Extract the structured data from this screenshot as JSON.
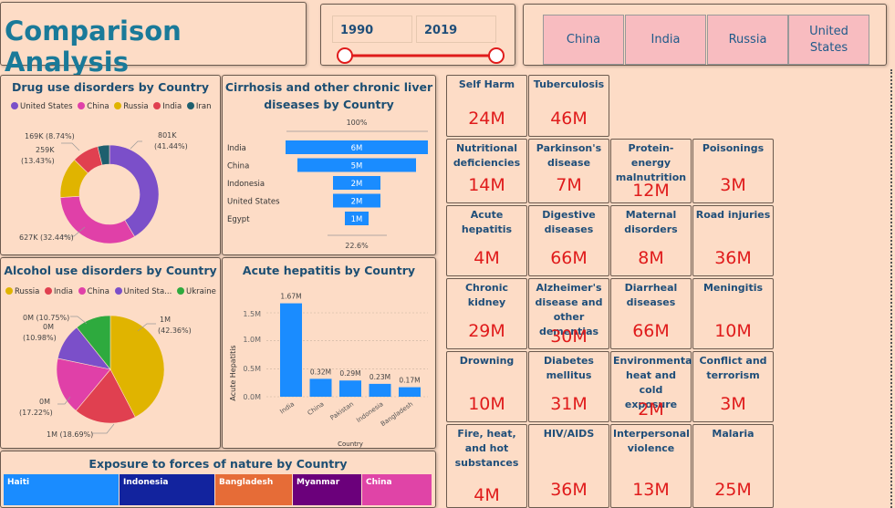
{
  "header": {
    "title": "Comparison Analysis"
  },
  "year_slicer": {
    "start": "1990",
    "end": "2019"
  },
  "country_slicer": {
    "items": [
      "China",
      "India",
      "Russia",
      "United States"
    ]
  },
  "drug": {
    "title": "Drug use disorders by Country",
    "legend": [
      "United States",
      "China",
      "Russia",
      "India",
      "Iran"
    ],
    "labels": {
      "a": "169K (8.74%)",
      "b": "259K",
      "c": "(13.43%)",
      "d": "801K",
      "e": "(41.44%)",
      "f": "627K (32.44%)"
    }
  },
  "cirrhosis": {
    "title_line1": "Cirrhosis and other chronic liver",
    "title_line2": "diseases by Country",
    "top_label": "100%",
    "bottom_label": "22.6%",
    "rows": [
      {
        "country": "India",
        "value": "6M"
      },
      {
        "country": "China",
        "value": "5M"
      },
      {
        "country": "Indonesia",
        "value": "2M"
      },
      {
        "country": "United States",
        "value": "2M"
      },
      {
        "country": "Egypt",
        "value": "1M"
      }
    ]
  },
  "alcohol": {
    "title": "Alcohol use disorders by Country",
    "legend": [
      "Russia",
      "India",
      "China",
      "United Sta...",
      "Ukraine"
    ],
    "labels": {
      "a": "0M (10.75%)",
      "b": "0M",
      "c": "(10.98%)",
      "d": "1M",
      "e": "(42.36%)",
      "f": "0M",
      "g": "(17.22%)",
      "h": "1M (18.69%)"
    }
  },
  "hepatitis_chart": {
    "title": "Acute hepatitis by Country",
    "ylabel": "Acute Hepatitis",
    "xlabel": "Country",
    "yticks": [
      "1.5M",
      "1.0M",
      "0.5M",
      "0.0M"
    ],
    "bar_labels": [
      "1.67M",
      "0.32M",
      "0.29M",
      "0.23M",
      "0.17M"
    ]
  },
  "forces": {
    "title": "Exposure to forces of nature by Country",
    "items": [
      "Haiti",
      "Indonesia",
      "Bangladesh",
      "Myanmar",
      "China"
    ]
  },
  "cards": [
    {
      "title": "Self Harm",
      "value": "24M"
    },
    {
      "title": "Tuberculosis",
      "value": "46M"
    },
    {
      "title": "Nutritional deficiencies",
      "value": "14M"
    },
    {
      "title": "Parkinson's disease",
      "value": "7M"
    },
    {
      "title": "Protein-energy malnutrition",
      "value": "12M"
    },
    {
      "title": "Poisonings",
      "value": "3M"
    },
    {
      "title": "Acute hepatitis",
      "value": "4M"
    },
    {
      "title": "Digestive diseases",
      "value": "66M"
    },
    {
      "title": "Maternal disorders",
      "value": "8M"
    },
    {
      "title": "Road injuries",
      "value": "36M"
    },
    {
      "title": "Chronic kidney",
      "value": "29M"
    },
    {
      "title": "Alzheimer's disease and other dementias",
      "value": "30M"
    },
    {
      "title": "Diarrheal diseases",
      "value": "66M"
    },
    {
      "title": "Meningitis",
      "value": "10M"
    },
    {
      "title": "Drowning",
      "value": "10M"
    },
    {
      "title": "Diabetes mellitus",
      "value": "31M"
    },
    {
      "title": "Environmental heat and cold exposure",
      "value": "2M"
    },
    {
      "title": "Conflict and terrorism",
      "value": "3M"
    },
    {
      "title": "Fire, heat, and hot substances",
      "value": "4M"
    },
    {
      "title": "HIV/AIDS",
      "value": "36M"
    },
    {
      "title": "Interpersonal violence",
      "value": "13M"
    },
    {
      "title": "Malaria",
      "value": "25M"
    }
  ],
  "chart_data": [
    {
      "type": "pie",
      "title": "Drug use disorders by Country",
      "categories": [
        "United States",
        "China",
        "Russia",
        "India",
        "Iran"
      ],
      "values": [
        801,
        627,
        259,
        169,
        75
      ],
      "colors": [
        "#7b4fc9",
        "#e040a8",
        "#e0b400",
        "#e04050",
        "#1e5f6e"
      ]
    },
    {
      "type": "bar",
      "title": "Cirrhosis and other chronic liver diseases by Country",
      "categories": [
        "India",
        "China",
        "Indonesia",
        "United States",
        "Egypt"
      ],
      "values": [
        6,
        5,
        2,
        2,
        1
      ]
    },
    {
      "type": "pie",
      "title": "Alcohol use disorders by Country",
      "categories": [
        "Russia",
        "India",
        "China",
        "United Sta...",
        "Ukraine"
      ],
      "values": [
        42.36,
        18.69,
        17.22,
        10.98,
        10.75
      ],
      "colors": [
        "#e0b400",
        "#e04050",
        "#e040a8",
        "#7b4fc9",
        "#2eaa3e"
      ]
    },
    {
      "type": "bar",
      "title": "Acute hepatitis by Country",
      "categories": [
        "India",
        "China",
        "Pakistan",
        "Indonesia",
        "Bangladesh"
      ],
      "values": [
        1.67,
        0.32,
        0.29,
        0.23,
        0.17
      ],
      "ylim": [
        0,
        1.7
      ]
    },
    {
      "type": "bar",
      "title": "Exposure to forces of nature by Country",
      "categories": [
        "Haiti",
        "Indonesia",
        "Bangladesh",
        "Myanmar",
        "China"
      ],
      "values": [
        128,
        105,
        84,
        75,
        73
      ],
      "colors": [
        "#1a8cff",
        "#12239e",
        "#e66c37",
        "#6b007b",
        "#e044a7"
      ]
    }
  ]
}
